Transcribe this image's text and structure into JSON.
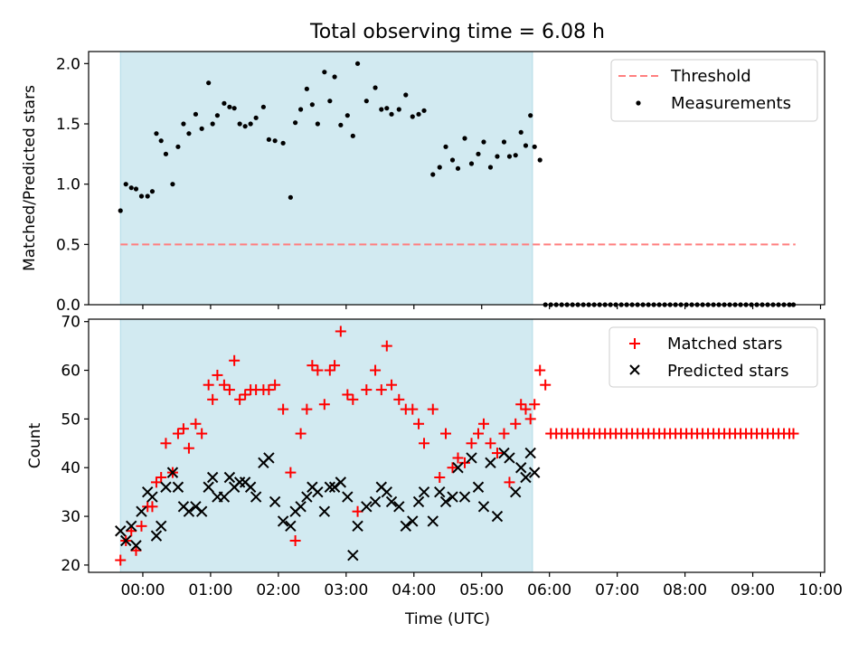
{
  "chart_data": [
    {
      "type": "scatter",
      "title": "Total observing time = 6.08 h",
      "xlabel": "",
      "ylabel": "Matched/Predicted stars",
      "ylim": [
        0.0,
        2.1
      ],
      "yticks": [
        "0.0",
        "0.5",
        "1.0",
        "1.5",
        "2.0"
      ],
      "xlim": [
        -0.8,
        10.06
      ],
      "shaded_span": [
        -0.33,
        5.75
      ],
      "shade_color": "#add8e6",
      "legend_position": "top-right",
      "threshold": {
        "name": "Threshold",
        "value": 0.5,
        "x_range": [
          -0.33,
          9.63
        ],
        "color": "#ff7f7f",
        "style": "dashed"
      },
      "series": [
        {
          "name": "Measurements",
          "color": "#000000",
          "marker": "dot",
          "x": [
            -0.33,
            -0.25,
            -0.17,
            -0.1,
            -0.02,
            0.07,
            0.14,
            0.2,
            0.27,
            0.34,
            0.44,
            0.52,
            0.6,
            0.68,
            0.78,
            0.87,
            0.97,
            1.03,
            1.1,
            1.2,
            1.28,
            1.35,
            1.43,
            1.51,
            1.59,
            1.67,
            1.78,
            1.86,
            1.95,
            2.07,
            2.18,
            2.25,
            2.33,
            2.42,
            2.5,
            2.58,
            2.68,
            2.76,
            2.83,
            2.92,
            3.02,
            3.1,
            3.17,
            3.3,
            3.43,
            3.52,
            3.6,
            3.67,
            3.78,
            3.88,
            3.98,
            4.07,
            4.15,
            4.28,
            4.38,
            4.47,
            4.57,
            4.65,
            4.75,
            4.85,
            4.95,
            5.03,
            5.13,
            5.23,
            5.33,
            5.41,
            5.5,
            5.58,
            5.65,
            5.72,
            5.78,
            5.86,
            5.94,
            6.02,
            6.1,
            6.18,
            6.26,
            6.34,
            6.42,
            6.5,
            6.58,
            6.66,
            6.74,
            6.82,
            6.9,
            6.98,
            7.06,
            7.14,
            7.22,
            7.3,
            7.38,
            7.46,
            7.54,
            7.62,
            7.7,
            7.78,
            7.86,
            7.94,
            8.02,
            8.1,
            8.18,
            8.26,
            8.34,
            8.42,
            8.5,
            8.58,
            8.66,
            8.74,
            8.82,
            8.9,
            8.98,
            9.06,
            9.14,
            9.22,
            9.3,
            9.38,
            9.46,
            9.54,
            9.6
          ],
          "y": [
            0.78,
            1.0,
            0.97,
            0.96,
            0.9,
            0.9,
            0.94,
            1.42,
            1.36,
            1.25,
            1.0,
            1.31,
            1.5,
            1.42,
            1.58,
            1.46,
            1.84,
            1.5,
            1.57,
            1.67,
            1.64,
            1.63,
            1.5,
            1.48,
            1.5,
            1.55,
            1.64,
            1.37,
            1.36,
            1.34,
            0.89,
            1.51,
            1.62,
            1.79,
            1.66,
            1.5,
            1.93,
            1.69,
            1.89,
            1.49,
            1.57,
            1.4,
            2.0,
            1.69,
            1.8,
            1.62,
            1.63,
            1.58,
            1.62,
            1.74,
            1.56,
            1.58,
            1.61,
            1.08,
            1.14,
            1.31,
            1.2,
            1.13,
            1.38,
            1.17,
            1.25,
            1.35,
            1.14,
            1.23,
            1.35,
            1.23,
            1.24,
            1.43,
            1.32,
            1.57,
            1.31,
            1.2,
            0.0,
            0.0,
            0.0,
            0.0,
            0.0,
            0.0,
            0.0,
            0.0,
            0.0,
            0.0,
            0.0,
            0.0,
            0.0,
            0.0,
            0.0,
            0.0,
            0.0,
            0.0,
            0.0,
            0.0,
            0.0,
            0.0,
            0.0,
            0.0,
            0.0,
            0.0,
            0.0,
            0.0,
            0.0,
            0.0,
            0.0,
            0.0,
            0.0,
            0.0,
            0.0,
            0.0,
            0.0,
            0.0,
            0.0,
            0.0,
            0.0,
            0.0,
            0.0,
            0.0,
            0.0,
            0.0,
            0.0
          ]
        }
      ]
    },
    {
      "type": "scatter",
      "title": "",
      "xlabel": "Time (UTC)",
      "ylabel": "Count",
      "ylim": [
        18.5,
        70.5
      ],
      "yticks": [
        "20",
        "30",
        "40",
        "50",
        "60",
        "70"
      ],
      "xlim": [
        -0.8,
        10.06
      ],
      "xticks": [
        "00:00",
        "01:00",
        "02:00",
        "03:00",
        "04:00",
        "05:00",
        "06:00",
        "07:00",
        "08:00",
        "09:00",
        "10:00"
      ],
      "shaded_span": [
        -0.33,
        5.75
      ],
      "shade_color": "#add8e6",
      "legend_position": "top-right",
      "series": [
        {
          "name": "Matched stars",
          "color": "#ff0000",
          "marker": "plus",
          "x": [
            -0.33,
            -0.25,
            -0.17,
            -0.1,
            -0.02,
            0.07,
            0.14,
            0.2,
            0.27,
            0.34,
            0.44,
            0.52,
            0.6,
            0.68,
            0.78,
            0.87,
            0.97,
            1.03,
            1.1,
            1.2,
            1.28,
            1.35,
            1.43,
            1.51,
            1.59,
            1.67,
            1.78,
            1.86,
            1.95,
            2.07,
            2.18,
            2.25,
            2.33,
            2.42,
            2.5,
            2.58,
            2.68,
            2.76,
            2.83,
            2.92,
            3.02,
            3.1,
            3.17,
            3.3,
            3.43,
            3.52,
            3.6,
            3.67,
            3.78,
            3.88,
            3.98,
            4.07,
            4.15,
            4.28,
            4.38,
            4.47,
            4.57,
            4.65,
            4.75,
            4.85,
            4.95,
            5.03,
            5.13,
            5.23,
            5.33,
            5.41,
            5.5,
            5.58,
            5.65,
            5.72,
            5.78,
            5.86,
            5.94,
            6.02,
            6.1,
            6.18,
            6.26,
            6.34,
            6.42,
            6.5,
            6.58,
            6.66,
            6.74,
            6.82,
            6.9,
            6.98,
            7.06,
            7.14,
            7.22,
            7.3,
            7.38,
            7.46,
            7.54,
            7.62,
            7.7,
            7.78,
            7.86,
            7.94,
            8.02,
            8.1,
            8.18,
            8.26,
            8.34,
            8.42,
            8.5,
            8.58,
            8.66,
            8.74,
            8.82,
            8.9,
            8.98,
            9.06,
            9.14,
            9.22,
            9.3,
            9.38,
            9.46,
            9.54,
            9.6
          ],
          "y": [
            21,
            25,
            27,
            23,
            28,
            32,
            32,
            37,
            38,
            45,
            39,
            47,
            48,
            44,
            49,
            47,
            57,
            54,
            59,
            57,
            56,
            62,
            54,
            55,
            56,
            56,
            56,
            56,
            57,
            52,
            39,
            25,
            47,
            52,
            61,
            60,
            53,
            60,
            61,
            68,
            55,
            54,
            31,
            56,
            60,
            56,
            65,
            57,
            54,
            52,
            52,
            49,
            45,
            52,
            38,
            47,
            40,
            42,
            41,
            45,
            47,
            49,
            45,
            43,
            47,
            37,
            49,
            53,
            52,
            50,
            53,
            60,
            57,
            47,
            47,
            47,
            47,
            47,
            47,
            47,
            47,
            47,
            47,
            47,
            47,
            47,
            47,
            47,
            47,
            47,
            47,
            47,
            47,
            47,
            47,
            47,
            47,
            47,
            47,
            47,
            47,
            47,
            47,
            47,
            47,
            47,
            47,
            47,
            47,
            47,
            47,
            47,
            47,
            47,
            47,
            47,
            47,
            47,
            47
          ],
          "note_hidden": ""
        },
        {
          "name": "Predicted stars",
          "color": "#000000",
          "marker": "x",
          "x": [
            -0.33,
            -0.25,
            -0.17,
            -0.1,
            -0.02,
            0.07,
            0.14,
            0.2,
            0.27,
            0.34,
            0.44,
            0.52,
            0.6,
            0.68,
            0.78,
            0.87,
            0.97,
            1.03,
            1.1,
            1.2,
            1.28,
            1.35,
            1.43,
            1.51,
            1.59,
            1.67,
            1.78,
            1.86,
            1.95,
            2.07,
            2.18,
            2.25,
            2.33,
            2.42,
            2.5,
            2.58,
            2.68,
            2.76,
            2.83,
            2.92,
            3.02,
            3.1,
            3.17,
            3.3,
            3.43,
            3.52,
            3.6,
            3.67,
            3.78,
            3.88,
            3.98,
            4.07,
            4.15,
            4.28,
            4.38,
            4.47,
            4.57,
            4.65,
            4.75,
            4.85,
            4.95,
            5.03,
            5.13,
            5.23,
            5.33,
            5.41,
            5.5,
            5.58,
            5.65,
            5.72
          ],
          "y": [
            27,
            25,
            28,
            24,
            31,
            35,
            34,
            26,
            28,
            36,
            39,
            36,
            32,
            31,
            32,
            31,
            36,
            38,
            34,
            34,
            38,
            36,
            37,
            37,
            36,
            34,
            41,
            42,
            33,
            29,
            28,
            31,
            32,
            34,
            36,
            35,
            31,
            36,
            36,
            37,
            34,
            22,
            28,
            32,
            33,
            36,
            35,
            33,
            32,
            28,
            29,
            33,
            35,
            29,
            35,
            33,
            34,
            40,
            34,
            42,
            36,
            32,
            41,
            30,
            43,
            42,
            35,
            40,
            38,
            43
          ],
          "extra_point": {
            "x": 5.78,
            "y": 39
          }
        }
      ]
    }
  ]
}
